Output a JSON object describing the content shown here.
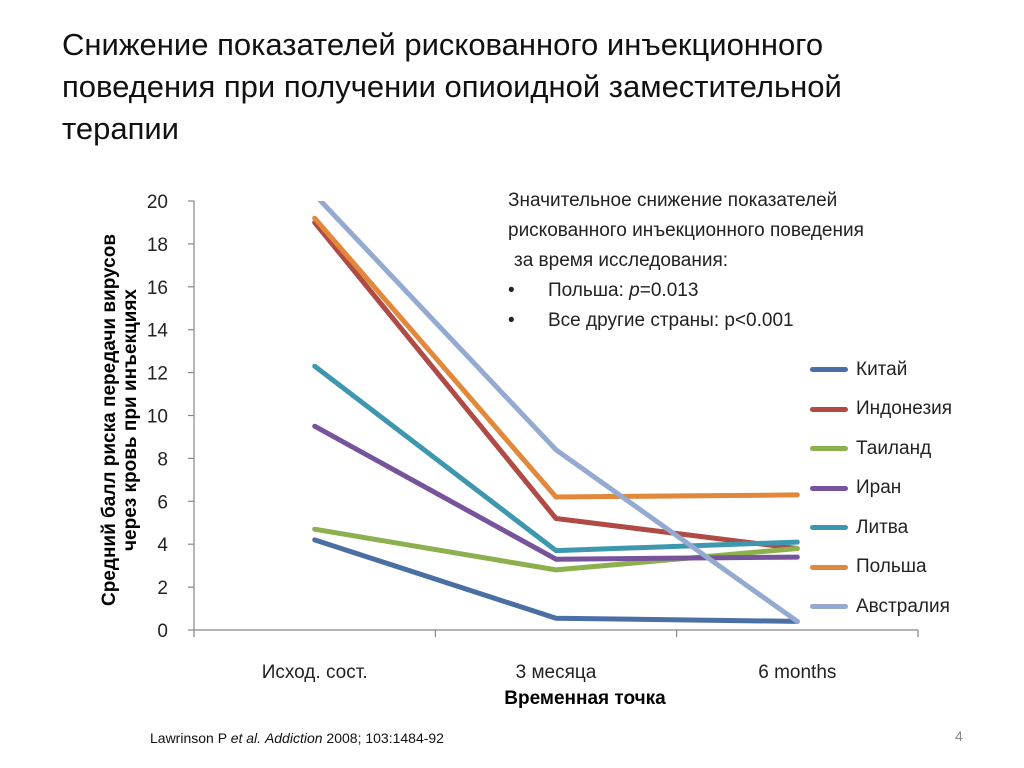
{
  "slide": {
    "title": "Снижение показателей рискованного инъекционного поведения при получении опиоидной заместительной терапии",
    "citation": {
      "prefix": "Lawrinson P ",
      "etal": "et al.",
      "journal": "Addiction",
      "rest": " 2008; 103:1484-92"
    },
    "page_number": "4"
  },
  "annotation": {
    "line1": "Значительное снижение показателей",
    "line2": "рискованного инъекционного поведения",
    "line3": "за время исследования:",
    "bullet1_prefix": "Польша: ",
    "bullet1_p": "p",
    "bullet1_rest": "=0.013",
    "bullet2": "Все другие страны: p<0.001"
  },
  "chart_data": {
    "type": "line",
    "title": "",
    "xlabel": "Временная точка",
    "ylabel": "Средний балл риска передачи вирусов через кровь при инъекциях",
    "categories": [
      "Исход. сост.",
      "3 месяца",
      "6 months"
    ],
    "ylim": [
      0,
      20
    ],
    "yticks": [
      0,
      2,
      4,
      6,
      8,
      10,
      12,
      14,
      16,
      18,
      20
    ],
    "grid": false,
    "legend_position": "right",
    "series": [
      {
        "name": "Китай",
        "color": "#4A6FA5",
        "values": [
          4.2,
          0.55,
          0.4
        ]
      },
      {
        "name": "Индонезия",
        "color": "#B04A45",
        "values": [
          19.0,
          5.2,
          3.8
        ]
      },
      {
        "name": "Таиланд",
        "color": "#8DB04F",
        "values": [
          4.7,
          2.8,
          3.8
        ]
      },
      {
        "name": "Иран",
        "color": "#76539A",
        "values": [
          9.5,
          3.3,
          3.4
        ]
      },
      {
        "name": "Литва",
        "color": "#3D98AF",
        "values": [
          12.3,
          3.7,
          4.1
        ]
      },
      {
        "name": "Польша",
        "color": "#E2883A",
        "values": [
          19.2,
          6.2,
          6.3
        ]
      },
      {
        "name": "Австралия",
        "color": "#94AAD0",
        "values": [
          20.3,
          8.4,
          0.4
        ]
      }
    ]
  }
}
